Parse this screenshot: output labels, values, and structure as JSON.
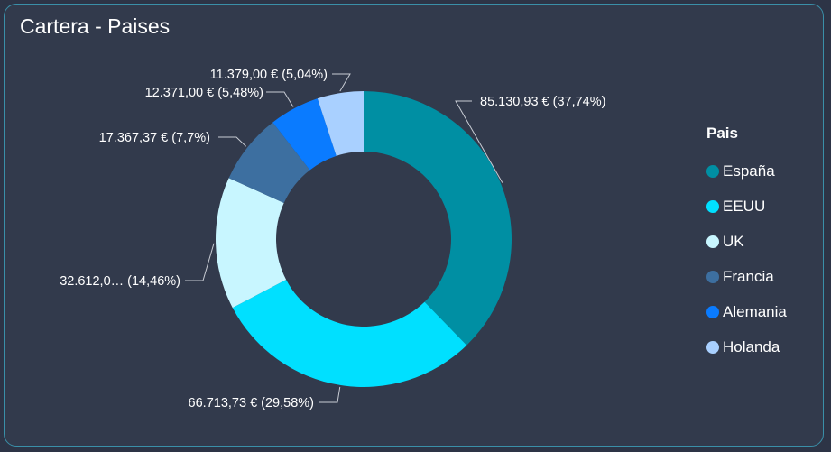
{
  "title": "Cartera - Paises",
  "chart_data": {
    "type": "pie",
    "donut": true,
    "legend_title": "Pais",
    "legend_position": "right",
    "slices": [
      {
        "name": "España",
        "value": 85130.93,
        "label": "85.130,93 € (37,74%)",
        "color": "#008fa3"
      },
      {
        "name": "EEUU",
        "value": 66713.73,
        "label": "66.713,73 € (29,58%)",
        "color": "#00e0ff"
      },
      {
        "name": "UK",
        "value": 32612.0,
        "label": "32.612,0… (14,46%)",
        "color": "#c8f6ff"
      },
      {
        "name": "Francia",
        "value": 17367.37,
        "label": "17.367,37 € (7,7%)",
        "color": "#3d6fa0"
      },
      {
        "name": "Alemania",
        "value": 12371.0,
        "label": "12.371,00 € (5,48%)",
        "color": "#0a7bff"
      },
      {
        "name": "Holanda",
        "value": 11379.0,
        "label": "11.379,00 € (5,04%)",
        "color": "#a9d0ff"
      }
    ]
  }
}
